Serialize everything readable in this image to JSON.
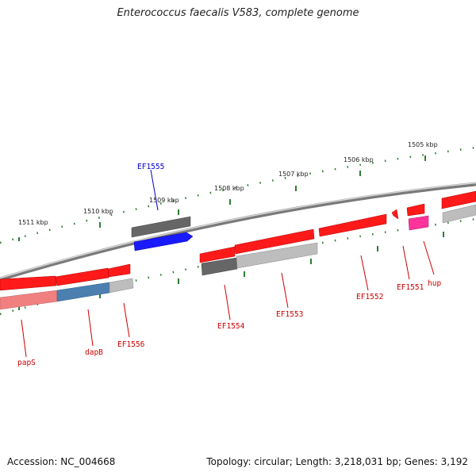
{
  "title": "Enterococcus faecalis V583, complete genome",
  "footer": {
    "accession": "Accession: NC_004668",
    "topology": "Topology: circular; Length: 3,218,031 bp; Genes: 3,192"
  },
  "colors": {
    "backbone": "#808080",
    "ticks": "#2e7d32",
    "gene_red": "#ff1a1a",
    "gene_grey": "#666666",
    "gene_lightgrey": "#bdbdbd",
    "gene_blue": "#1a1aff",
    "gene_steelblue": "#4a7fb0",
    "gene_pink": "#ff3399",
    "gene_salmon": "#f08080",
    "label_red": "#cc0000",
    "label_blue": "#0000cc"
  },
  "kbp_labels": [
    "1505 kbp",
    "1506 kbp",
    "1507 kbp",
    "1508 kbp",
    "1509 kbp",
    "1510 kbp",
    "1511 kbp"
  ],
  "gene_labels": [
    "EF1555",
    "papS",
    "dapB",
    "EF1556",
    "EF1554",
    "EF1553",
    "EF1552",
    "EF1551",
    "hup"
  ]
}
